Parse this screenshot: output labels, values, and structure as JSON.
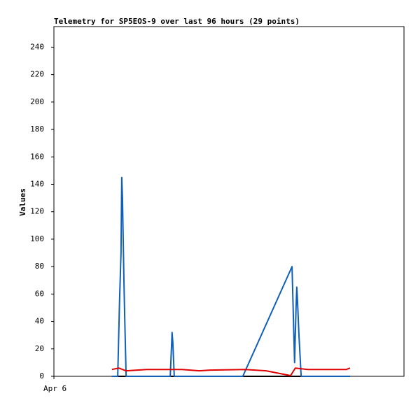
{
  "chart_data": {
    "type": "line",
    "title": "Telemetry for SP5EOS-9 over last 96 hours (29 points)",
    "y_label": "Values",
    "xlim": [
      0,
      96
    ],
    "xticks": [
      {
        "value": 0,
        "label": "Apr 6"
      }
    ],
    "ylim": [
      0,
      255
    ],
    "yticks": [
      0,
      20,
      40,
      60,
      80,
      100,
      120,
      140,
      160,
      180,
      200,
      220,
      240
    ],
    "series": [
      {
        "color": "#000000",
        "x": [
          15.9,
          81.2
        ],
        "values": [
          0,
          0
        ]
      },
      {
        "color": "#1060b8",
        "x": [
          15.9,
          17.5,
          18.0,
          18.4,
          18.6,
          18.8,
          19.0,
          19.2,
          19.4,
          19.8,
          31.9,
          32.3,
          32.4,
          32.6,
          33.0,
          51.8,
          65.3,
          65.7,
          66.0,
          66.4,
          66.6,
          66.8,
          67.2,
          67.8,
          81.2
        ],
        "values": [
          0,
          0,
          55,
          90,
          145,
          130,
          100,
          70,
          45,
          0,
          0,
          25,
          32,
          25,
          0,
          0,
          80,
          40,
          10,
          50,
          65,
          55,
          30,
          0,
          0
        ]
      },
      {
        "color": "#e00000",
        "x": [
          15.9,
          17.8,
          19.8,
          25.5,
          35.1,
          39.9,
          42.8,
          52.4,
          58.2,
          64.9,
          66.2,
          69.6,
          77.4,
          80.2,
          81.2
        ],
        "values": [
          5,
          6,
          4,
          5,
          5,
          4,
          4.5,
          5,
          4,
          0.5,
          6,
          5,
          5,
          5,
          6
        ]
      }
    ]
  }
}
